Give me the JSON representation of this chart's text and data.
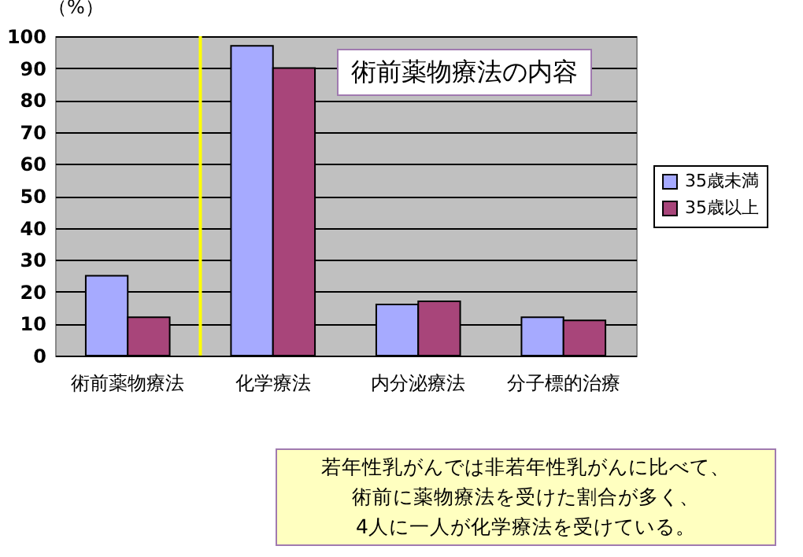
{
  "chart_data": {
    "type": "bar",
    "title": "術前薬物療法の内容",
    "ylabel": "（%）",
    "categories": [
      "術前薬物療法",
      "化学療法",
      "内分泌療法",
      "分子標的治療"
    ],
    "series": [
      {
        "name": "35歳未満",
        "color": "#a6aaff",
        "values": [
          25,
          97,
          16,
          12
        ]
      },
      {
        "name": "35歳以上",
        "color": "#a8457a",
        "values": [
          12,
          90,
          17,
          11
        ]
      }
    ],
    "ylim": [
      0,
      100
    ],
    "yticks": [
      0,
      10,
      20,
      30,
      40,
      50,
      60,
      70,
      80,
      90,
      100
    ],
    "grid": "y",
    "legend": "right",
    "ref_lines": [
      {
        "axis": "x",
        "value": "術前薬物療法",
        "color": "#ffff00"
      }
    ],
    "annotations": [
      "若年性乳がんでは非若年性乳がんに比べて、",
      "術前に薬物療法を受けた割合が多く、",
      "4人に一人が化学療法を受けている。"
    ]
  }
}
